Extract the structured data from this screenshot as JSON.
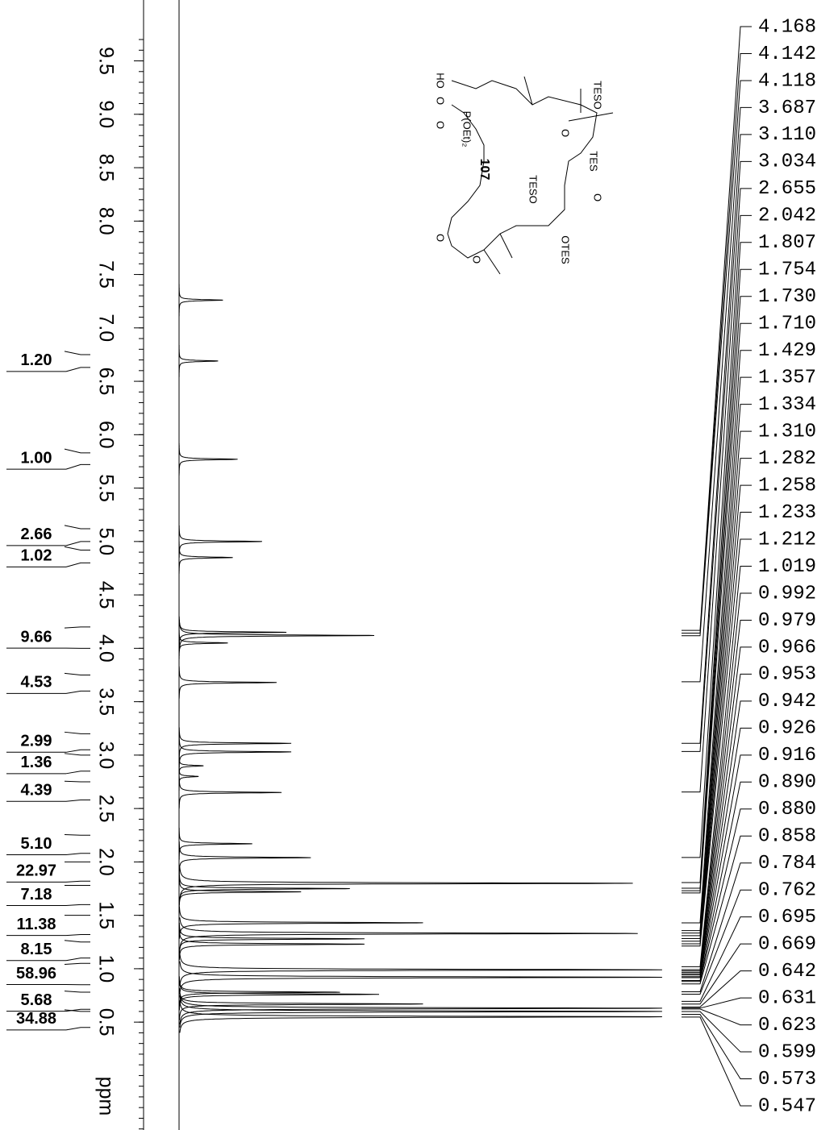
{
  "chart_data": {
    "type": "nmr",
    "xlabel": "ppm",
    "xlim": [
      10.07,
      -0.51
    ],
    "xticks": [
      {
        "value": 9.5,
        "label": "9.5"
      },
      {
        "value": 9,
        "label": "9.0"
      },
      {
        "value": 8.5,
        "label": "8.5"
      },
      {
        "value": 8,
        "label": "8.0"
      },
      {
        "value": 7.5,
        "label": "7.5"
      },
      {
        "value": 7,
        "label": "7.0"
      },
      {
        "value": 6.5,
        "label": "6.5"
      },
      {
        "value": 6,
        "label": "6.0"
      },
      {
        "value": 5.5,
        "label": "5.5"
      },
      {
        "value": 5,
        "label": "5.0"
      },
      {
        "value": 4.5,
        "label": "4.5"
      },
      {
        "value": 4,
        "label": "4.0"
      },
      {
        "value": 3.5,
        "label": "3.5"
      },
      {
        "value": 3,
        "label": "3.0"
      },
      {
        "value": 2.5,
        "label": "2.5"
      },
      {
        "value": 2,
        "label": "2.0"
      },
      {
        "value": 1.5,
        "label": "1.5"
      },
      {
        "value": 1,
        "label": "1.0"
      },
      {
        "value": 0.5,
        "label": "0.5"
      }
    ],
    "peaks": {
      "ppm": [
        7.26,
        6.69,
        5.77,
        5.0,
        4.85,
        4.15,
        4.12,
        4.05,
        3.68,
        3.11,
        3.03,
        2.9,
        2.8,
        2.65,
        2.17,
        2.04,
        1.8,
        1.75,
        1.72,
        1.43,
        1.33,
        1.28,
        1.23,
        0.99,
        0.92,
        0.78,
        0.76,
        0.67,
        0.63,
        0.6,
        0.55
      ],
      "intensity": [
        9,
        8,
        12,
        17,
        11,
        22,
        40,
        10,
        20,
        23,
        23,
        5,
        4,
        21,
        15,
        27,
        93,
        35,
        25,
        50,
        94,
        38,
        38,
        99,
        99,
        33,
        41,
        50,
        99,
        99,
        99
      ]
    },
    "integrals": {
      "values": [
        1.2,
        1,
        2.66,
        1.02,
        9.66,
        4.53,
        2.99,
        1.36,
        4.39,
        5.1,
        22.97,
        7.18,
        11.38,
        8.15,
        58.96,
        5.68,
        34.88
      ],
      "value_labels": [
        "1.20",
        "1.00",
        "2.66",
        "1.02",
        "9.66",
        "4.53",
        "2.99",
        "1.36",
        "4.39",
        "5.10",
        "22.97",
        "7.18",
        "11.38",
        "8.15",
        "58.96",
        "5.68",
        "34.88"
      ],
      "ranges": [
        [
          6.75,
          6.63
        ],
        [
          5.83,
          5.72
        ],
        [
          5.12,
          5.0
        ],
        [
          4.92,
          4.8
        ],
        [
          4.2,
          4.0
        ],
        [
          3.75,
          3.6
        ],
        [
          3.2,
          3.05
        ],
        [
          3.0,
          2.85
        ],
        [
          2.75,
          2.58
        ],
        [
          2.25,
          2.08
        ],
        [
          2.0,
          1.82
        ],
        [
          1.78,
          1.6
        ],
        [
          1.5,
          1.32
        ],
        [
          1.25,
          1.1
        ],
        [
          1.05,
          0.85
        ],
        [
          0.78,
          0.62
        ],
        [
          0.6,
          0.45
        ]
      ]
    },
    "peak_labels": {
      "values": [
        4.168,
        4.142,
        4.118,
        3.687,
        3.11,
        3.034,
        2.655,
        2.042,
        1.807,
        1.754,
        1.73,
        1.71,
        1.429,
        1.357,
        1.334,
        1.31,
        1.282,
        1.258,
        1.233,
        1.212,
        1.019,
        0.992,
        0.979,
        0.966,
        0.953,
        0.942,
        0.926,
        0.916,
        0.89,
        0.88,
        0.858,
        0.784,
        0.762,
        0.695,
        0.669,
        0.642,
        0.631,
        0.623,
        0.599,
        0.573,
        0.547
      ],
      "value_labels": [
        "4.168",
        "4.142",
        "4.118",
        "3.687",
        "3.110",
        "3.034",
        "2.655",
        "2.042",
        "1.807",
        "1.754",
        "1.730",
        "1.710",
        "1.429",
        "1.357",
        "1.334",
        "1.310",
        "1.282",
        "1.258",
        "1.233",
        "1.212",
        "1.019",
        "0.992",
        "0.979",
        "0.966",
        "0.953",
        "0.942",
        "0.926",
        "0.916",
        "0.890",
        "0.880",
        "0.858",
        "0.784",
        "0.762",
        "0.695",
        "0.669",
        "0.642",
        "0.631",
        "0.623",
        "0.599",
        "0.573",
        "0.547"
      ]
    },
    "structure": {
      "label": "107",
      "atoms": [
        "HO",
        "O",
        "P(OEt)₂",
        "O",
        "TESO",
        "TES",
        "O",
        "TESO",
        "O",
        "OTES",
        "O",
        "O"
      ]
    }
  }
}
